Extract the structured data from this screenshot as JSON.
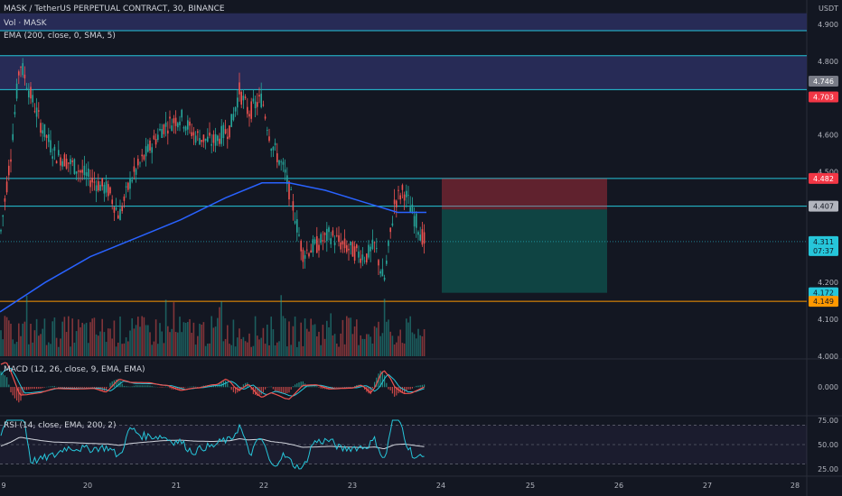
{
  "header": {
    "title": "MASK / TetherUS PERPETUAL CONTRACT, 30, BINANCE",
    "volume_label": "Vol · MASK",
    "ema_label": "EMA (200, close, 0, SMA, 5)",
    "macd_label": "MACD (12, 26, close, 9, EMA, EMA)",
    "rsi_label": "RSI (14, close, EMA, 200, 2)"
  },
  "price_axis": {
    "currency": "USDT",
    "ticks": [
      "4.900",
      "4.800",
      "4.700",
      "4.600",
      "4.500",
      "4.400",
      "4.300",
      "4.200",
      "4.100",
      "4.000"
    ]
  },
  "macd_axis": {
    "ticks": [
      "0.000"
    ]
  },
  "rsi_axis": {
    "ticks": [
      "75.00",
      "50.00",
      "25.00"
    ]
  },
  "time_axis": {
    "labels": [
      "9",
      "20",
      "21",
      "22",
      "23",
      "24",
      "25",
      "26",
      "27",
      "28"
    ]
  },
  "price_tags": [
    {
      "value": "4.746",
      "bg": "#787b86",
      "fg": "#ffffff"
    },
    {
      "value": "4.703",
      "bg": "#f23645",
      "fg": "#ffffff"
    },
    {
      "value": "4.482",
      "bg": "#f23645",
      "fg": "#ffffff"
    },
    {
      "value": "4.407",
      "bg": "#b2b5be",
      "fg": "#131722"
    },
    {
      "value": "4.311",
      "sub": "07:37",
      "bg": "#26c6da",
      "fg": "#131722"
    },
    {
      "value": "4.172",
      "bg": "#26c6da",
      "fg": "#131722"
    },
    {
      "value": "4.149",
      "bg": "#ff9800",
      "fg": "#131722"
    }
  ],
  "chart_data": {
    "type": "candlestick",
    "ema_period": 200,
    "colors": {
      "up": "#26a69a",
      "down": "#ef5350",
      "ema": "#2962ff",
      "macd": "#ef5350",
      "signal": "#26c6da",
      "rsi": "#26c6da",
      "rsi_ma": "#d1d4dc"
    },
    "horizontal_levels": [
      4.883,
      4.815,
      4.723,
      4.482,
      4.407,
      4.149
    ],
    "position": {
      "entry": 4.398,
      "stop": 4.482,
      "target": 4.172
    },
    "shaded_zones": [
      {
        "from": 4.883,
        "to": 4.93,
        "color": "#2a2e5c"
      },
      {
        "from": 4.723,
        "to": 4.815,
        "color": "#2a2e5c"
      }
    ]
  }
}
